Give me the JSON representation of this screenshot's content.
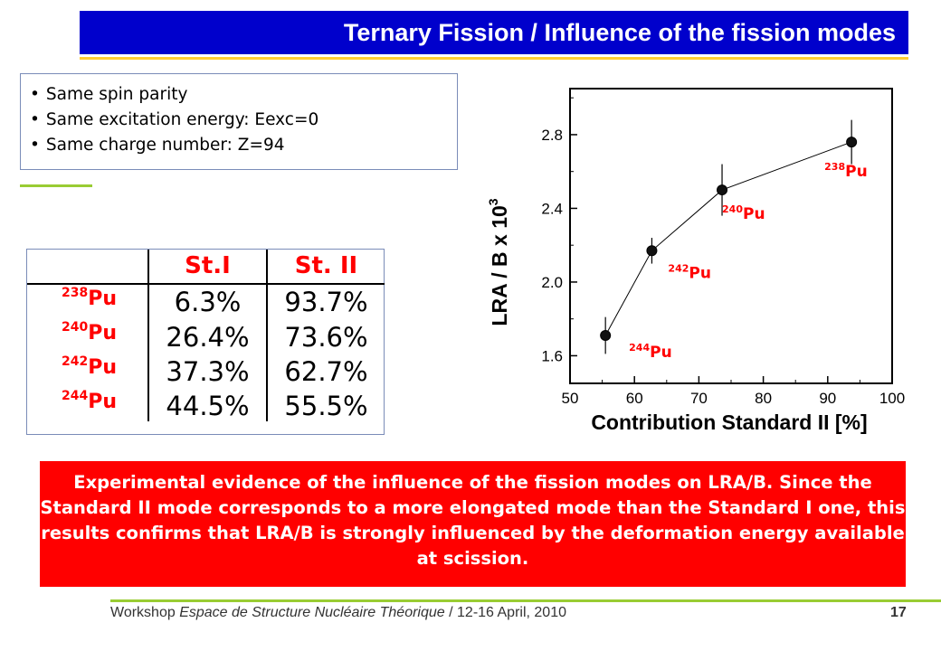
{
  "slide": {
    "title": "Ternary Fission / Influence of the fission modes",
    "bullets": [
      "Same spin parity",
      "Same excitation energy: Eexc=0",
      "Same charge number: Z=94"
    ],
    "conclusion": "Experimental evidence of the influence of the fission modes on LRA/B. Since the Standard II mode corresponds to a more elongated mode than the Standard I one, this results confirms that LRA/B is strongly influenced by the deformation energy available at scission.",
    "footer": {
      "prefix": "Workshop ",
      "event": "Espace de Structure Nucléaire Théorique",
      "suffix": " / 12-16 April, 2010",
      "page": "17"
    }
  },
  "modes_table": {
    "headers": [
      "St.I",
      "St. II"
    ],
    "rows": [
      {
        "mass": "238",
        "element": "Pu",
        "st1": "6.3%",
        "st2": "93.7%"
      },
      {
        "mass": "240",
        "element": "Pu",
        "st1": "26.4%",
        "st2": "73.6%"
      },
      {
        "mass": "242",
        "element": "Pu",
        "st1": "37.3%",
        "st2": "62.7%"
      },
      {
        "mass": "244",
        "element": "Pu",
        "st1": "44.5%",
        "st2": "55.5%"
      }
    ]
  },
  "colors": {
    "title_bg": "#0000cc",
    "accent_red": "#ff0000",
    "accent_green": "#99cc33",
    "accent_yellow": "#ffcc33"
  },
  "chart_data": {
    "type": "scatter",
    "xlabel": "Contribution Standard II [%]",
    "ylabel": "LRA / B x 10",
    "ylabel_exp": "3",
    "xlim": [
      50,
      100
    ],
    "ylim": [
      1.45,
      3.05
    ],
    "xticks": [
      50,
      60,
      70,
      80,
      90,
      100
    ],
    "yticks": [
      1.6,
      2.0,
      2.4,
      2.8
    ],
    "grid": false,
    "connected": true,
    "points": [
      {
        "mass": "244",
        "element": "Pu",
        "x": 55.5,
        "y": 1.71,
        "err": 0.1
      },
      {
        "mass": "242",
        "element": "Pu",
        "x": 62.7,
        "y": 2.17,
        "err": 0.07
      },
      {
        "mass": "240",
        "element": "Pu",
        "x": 73.6,
        "y": 2.5,
        "err": 0.14
      },
      {
        "mass": "238",
        "element": "Pu",
        "x": 93.7,
        "y": 2.76,
        "err": 0.12
      }
    ]
  }
}
